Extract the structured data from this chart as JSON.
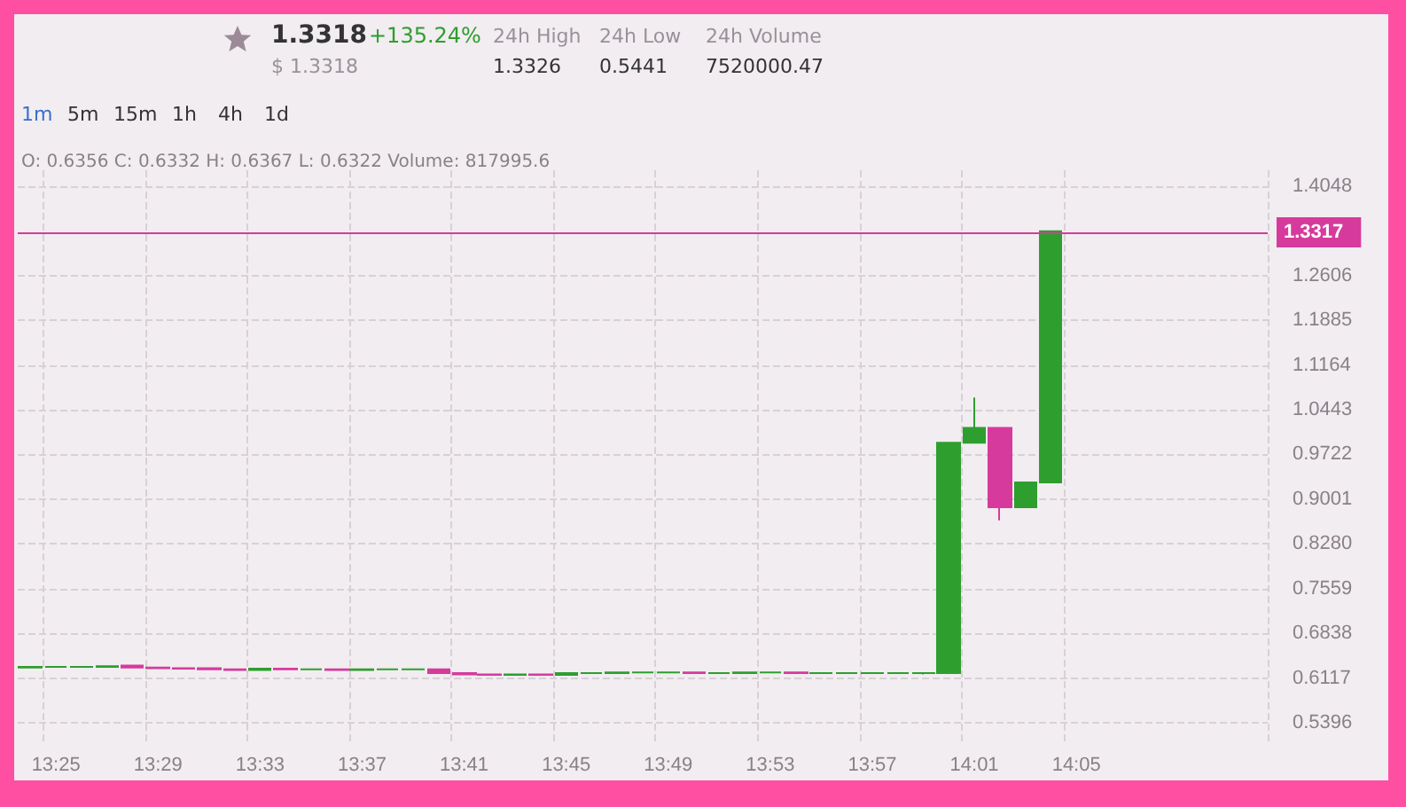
{
  "chart_data": {
    "type": "candlestick",
    "categories": [
      null,
      "13:25",
      null,
      null,
      null,
      "13:29",
      null,
      null,
      null,
      "13:33",
      null,
      null,
      null,
      "13:37",
      null,
      null,
      null,
      "13:41",
      null,
      null,
      null,
      "13:45",
      null,
      null,
      null,
      "13:49",
      null,
      null,
      null,
      "13:53",
      null,
      null,
      null,
      "13:57",
      null,
      null,
      null,
      "14:01",
      null,
      null,
      null,
      "14:05",
      null,
      null,
      null,
      null,
      null,
      null,
      null
    ],
    "ohlc": [
      [
        0.629,
        0.63,
        0.628,
        0.63
      ],
      [
        0.63,
        0.631,
        0.629,
        0.63
      ],
      [
        0.63,
        0.631,
        0.629,
        0.63
      ],
      [
        0.63,
        0.631,
        0.629,
        0.631
      ],
      [
        0.632,
        0.633,
        0.628,
        0.629
      ],
      [
        0.629,
        0.63,
        0.627,
        0.628
      ],
      [
        0.628,
        0.629,
        0.626,
        0.627
      ],
      [
        0.628,
        0.629,
        0.625,
        0.626
      ],
      [
        0.626,
        0.627,
        0.624,
        0.625
      ],
      [
        0.625,
        0.628,
        0.624,
        0.627
      ],
      [
        0.627,
        0.628,
        0.625,
        0.626
      ],
      [
        0.626,
        0.627,
        0.625,
        0.626
      ],
      [
        0.626,
        0.627,
        0.624,
        0.625
      ],
      [
        0.625,
        0.627,
        0.624,
        0.626
      ],
      [
        0.626,
        0.627,
        0.625,
        0.626
      ],
      [
        0.626,
        0.627,
        0.625,
        0.626
      ],
      [
        0.626,
        0.627,
        0.619,
        0.62
      ],
      [
        0.62,
        0.621,
        0.617,
        0.618
      ],
      [
        0.618,
        0.619,
        0.616,
        0.617
      ],
      [
        0.617,
        0.619,
        0.616,
        0.618
      ],
      [
        0.618,
        0.619,
        0.616,
        0.617
      ],
      [
        0.617,
        0.621,
        0.616,
        0.62
      ],
      [
        0.62,
        0.621,
        0.619,
        0.62
      ],
      [
        0.62,
        0.621,
        0.619,
        0.621
      ],
      [
        0.621,
        0.622,
        0.62,
        0.621
      ],
      [
        0.621,
        0.622,
        0.62,
        0.621
      ],
      [
        0.621,
        0.622,
        0.619,
        0.62
      ],
      [
        0.62,
        0.621,
        0.619,
        0.62
      ],
      [
        0.62,
        0.621,
        0.619,
        0.621
      ],
      [
        0.621,
        0.622,
        0.62,
        0.621
      ],
      [
        0.621,
        0.622,
        0.619,
        0.62
      ],
      [
        0.62,
        0.621,
        0.619,
        0.62
      ],
      [
        0.62,
        0.621,
        0.619,
        0.62
      ],
      [
        0.62,
        0.621,
        0.619,
        0.62
      ],
      [
        0.62,
        0.621,
        0.619,
        0.62
      ],
      [
        0.62,
        0.621,
        0.618,
        0.62
      ],
      [
        0.62,
        0.991,
        0.62,
        0.991
      ],
      [
        0.991,
        1.064,
        0.991,
        1.015
      ],
      [
        1.015,
        1.015,
        0.866,
        0.887
      ],
      [
        0.887,
        0.927,
        0.887,
        0.927
      ],
      [
        0.927,
        1.3317,
        0.927,
        1.3317
      ],
      null,
      null,
      null,
      null,
      null,
      null,
      null,
      null
    ],
    "colors": [
      "#2e9e2e",
      "#2e9e2e",
      "#2e9e2e",
      "#2e9e2e",
      "#d63a9c",
      "#d63a9c",
      "#d63a9c",
      "#d63a9c",
      "#d63a9c",
      "#2e9e2e",
      "#d63a9c",
      "#2e9e2e",
      "#d63a9c",
      "#2e9e2e",
      "#2e9e2e",
      "#2e9e2e",
      "#d63a9c",
      "#d63a9c",
      "#d63a9c",
      "#2e9e2e",
      "#d63a9c",
      "#2e9e2e",
      "#2e9e2e",
      "#2e9e2e",
      "#2e9e2e",
      "#2e9e2e",
      "#d63a9c",
      "#2e9e2e",
      "#2e9e2e",
      "#2e9e2e",
      "#d63a9c",
      "#2e9e2e",
      "#2e9e2e",
      "#2e9e2e",
      "#2e9e2e",
      "#2e9e2e",
      "#2e9e2e",
      "#2e9e2e",
      "#d63a9c",
      "#2e9e2e",
      "#2e9e2e",
      null,
      null,
      null,
      null,
      null,
      null,
      null,
      null
    ],
    "ylim": [
      0.51,
      1.43
    ],
    "yticks": [
      0.5396,
      0.6117,
      0.6838,
      0.7559,
      {
        "value": 0.828,
        "label": "0.8280"
      },
      0.9001,
      0.9722,
      1.0443,
      1.1164,
      1.1885,
      1.2606,
      1.4048
    ],
    "grid": true,
    "ref_lines": [
      {
        "axis": "y",
        "value": 1.3317,
        "label": "1.3317",
        "color": "#d63a9c"
      }
    ],
    "annotations": [
      "1.3318",
      "+135.24%",
      "24h High",
      "24h Low",
      "24h Volume",
      "$ 1.3318",
      "1.3326",
      "0.5441",
      "7520000.47",
      "1m",
      "5m",
      "15m",
      "1h",
      "4h",
      "1d",
      "O: 0.6356 C: 0.6332 H: 0.6367 L: 0.6322 Volume: 817995.6"
    ]
  }
}
